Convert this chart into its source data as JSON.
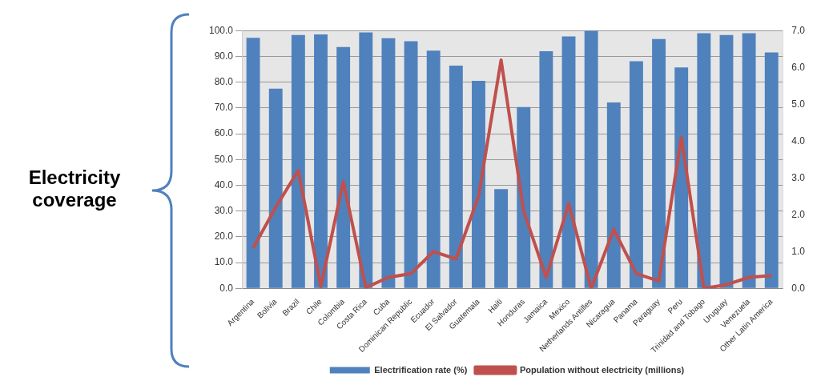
{
  "chart_data": {
    "type": "bar",
    "categories": [
      "Argentina",
      "Bolivia",
      "Brazil",
      "Chile",
      "Colombia",
      "Costa Rica",
      "Cuba",
      "Dominican Republic",
      "Ecuador",
      "El Salvador",
      "Guatemala",
      "Haiti",
      "Honduras",
      "Jamaica",
      "Mexico",
      "Netherlands Antilles",
      "Nicaragua",
      "Panama",
      "Paraguay",
      "Peru",
      "Trinidad and Tobago",
      "Uruguay",
      "Venezuela",
      "Other Latin America"
    ],
    "series": [
      {
        "name": "Electrification rate (%)",
        "color": "#4f81bd",
        "values": [
          97.2,
          77.5,
          98.3,
          98.5,
          93.6,
          99.3,
          97.0,
          95.9,
          92.2,
          86.4,
          80.5,
          38.5,
          70.3,
          92.0,
          97.7,
          100,
          72.1,
          88.1,
          96.7,
          85.7,
          99.0,
          98.3,
          99.0,
          91.5
        ]
      },
      {
        "name": "Population without electricity (millions)",
        "type": "line",
        "axis": "y2",
        "color": "#c0504d",
        "values": [
          1.1,
          2.2,
          3.2,
          0.05,
          2.9,
          0.02,
          0.3,
          0.4,
          1.0,
          0.8,
          2.5,
          6.2,
          2.1,
          0.3,
          2.3,
          0.0,
          1.6,
          0.4,
          0.2,
          4.1,
          0.0,
          0.1,
          0.3,
          0.35
        ]
      }
    ],
    "ylim": [
      0,
      100
    ],
    "yticks": [
      {
        "value": 0,
        "label": "0.0"
      },
      {
        "value": 10,
        "label": "10.0"
      },
      {
        "value": 20,
        "label": "20.0"
      },
      {
        "value": 30,
        "label": "30.0"
      },
      {
        "value": 40,
        "label": "40.0"
      },
      {
        "value": 50,
        "label": "50.0"
      },
      {
        "value": 60,
        "label": "60.0"
      },
      {
        "value": 70,
        "label": "70.0"
      },
      {
        "value": 80,
        "label": "80.0"
      },
      {
        "value": 90,
        "label": "90.0"
      },
      {
        "value": 100,
        "label": "100.0"
      }
    ],
    "y2lim": [
      0,
      7
    ],
    "y2ticks": [
      {
        "value": 0,
        "label": "0.0"
      },
      {
        "value": 1,
        "label": "1.0"
      },
      {
        "value": 2,
        "label": "2.0"
      },
      {
        "value": 3,
        "label": "3.0"
      },
      {
        "value": 4,
        "label": "4.0"
      },
      {
        "value": 5,
        "label": "5.0"
      },
      {
        "value": 6,
        "label": "6.0"
      },
      {
        "value": 7,
        "label": "7.0"
      }
    ],
    "grid": "y",
    "legend": "bottom",
    "marker": "none",
    "line_style": "solid",
    "annotations": [
      "Electricity coverage"
    ]
  }
}
